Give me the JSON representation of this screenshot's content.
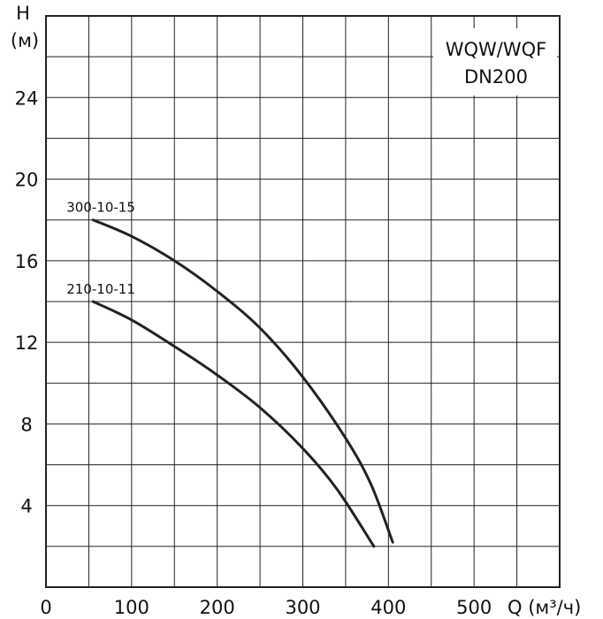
{
  "chart_data": {
    "type": "line",
    "title": [
      "WQW/WQF",
      "DN200"
    ],
    "ylabel": [
      "H",
      "(м)"
    ],
    "xlabel": "Q (м³/ч)",
    "xlim": [
      0,
      600
    ],
    "ylim": [
      0,
      28
    ],
    "x_ticks": [
      0,
      100,
      200,
      300,
      400,
      500
    ],
    "y_ticks": [
      4,
      8,
      12,
      16,
      20,
      24
    ],
    "grid": true,
    "series": [
      {
        "name": "300-10-15",
        "points": [
          [
            55,
            18.0
          ],
          [
            100,
            17.2
          ],
          [
            150,
            16.0
          ],
          [
            200,
            14.5
          ],
          [
            250,
            12.7
          ],
          [
            300,
            10.3
          ],
          [
            350,
            7.3
          ],
          [
            380,
            5.0
          ],
          [
            405,
            2.2
          ]
        ]
      },
      {
        "name": "210-10-11",
        "points": [
          [
            55,
            14.0
          ],
          [
            100,
            13.1
          ],
          [
            150,
            11.8
          ],
          [
            200,
            10.4
          ],
          [
            250,
            8.8
          ],
          [
            300,
            6.8
          ],
          [
            340,
            4.8
          ],
          [
            383,
            2.0
          ]
        ]
      }
    ]
  }
}
